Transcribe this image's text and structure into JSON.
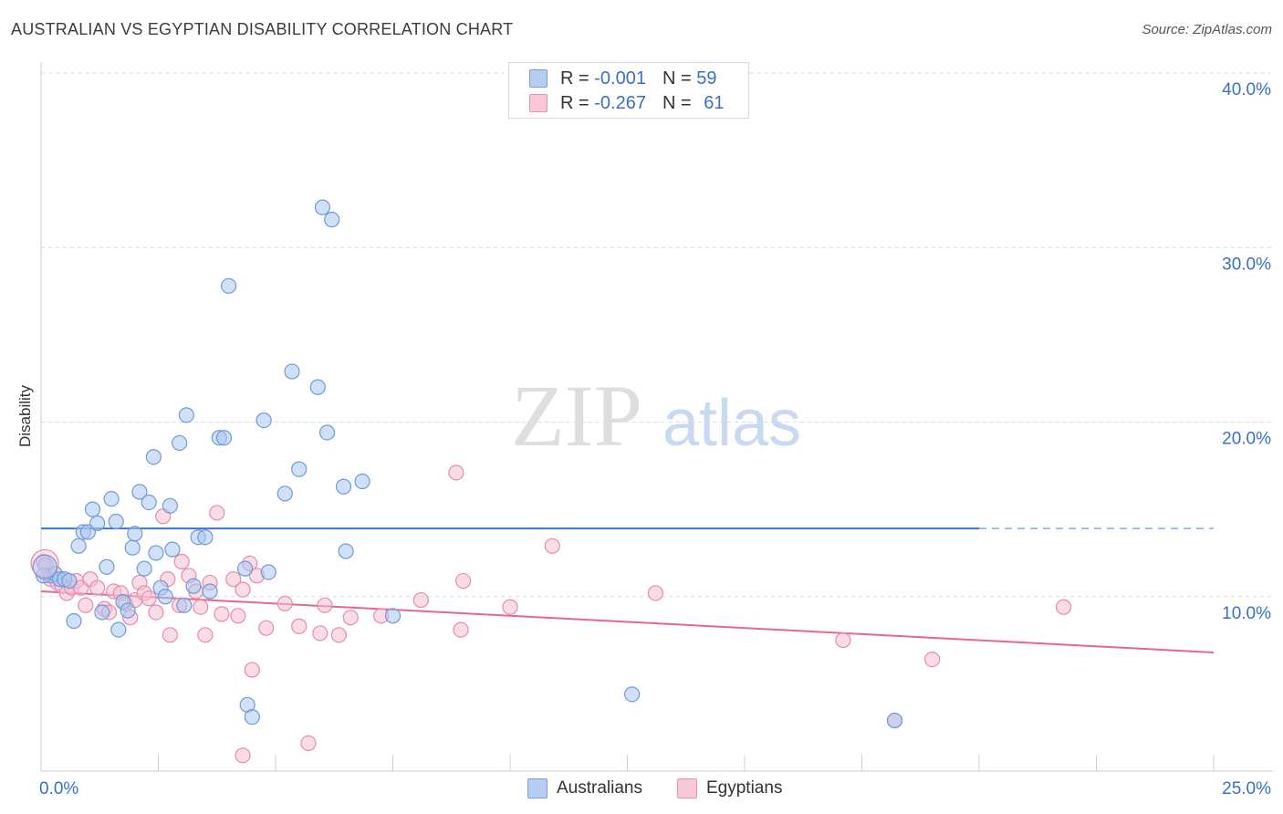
{
  "title": "AUSTRALIAN VS EGYPTIAN DISABILITY CORRELATION CHART",
  "source": "Source: ZipAtlas.com",
  "watermark": {
    "zip": "ZIP",
    "atlas": "atlas"
  },
  "legend": {
    "rows": [
      {
        "r_label": "R = ",
        "r_value": "-0.001",
        "n_label": "N = ",
        "n_value": "59"
      },
      {
        "r_label": "R = ",
        "r_value": "-0.267",
        "n_label": "N = ",
        "n_value": "61"
      }
    ]
  },
  "colors": {
    "blue_fill": "#a9c6ef",
    "blue_stroke": "#6f9ad8",
    "blue_line": "#3a76cf",
    "pink_fill": "#f6bfd2",
    "pink_stroke": "#e98aab",
    "pink_line": "#e56690",
    "axis_text": "#3a6fc8",
    "grid": "#dcdcdc"
  },
  "chart_data": {
    "type": "scatter",
    "title": "AUSTRALIAN VS EGYPTIAN DISABILITY CORRELATION CHART",
    "xlabel": "",
    "ylabel": "Disability",
    "xlim": [
      0,
      25
    ],
    "ylim": [
      0,
      40
    ],
    "x_tick_labels": [
      {
        "value": 0,
        "label": "0.0%"
      },
      {
        "value": 25,
        "label": "25.0%"
      }
    ],
    "y_tick_labels": [
      {
        "value": 10,
        "label": "10.0%"
      },
      {
        "value": 20,
        "label": "20.0%"
      },
      {
        "value": 30,
        "label": "30.0%"
      },
      {
        "value": 40,
        "label": "40.0%"
      }
    ],
    "series": [
      {
        "name": "Australians",
        "r": -0.001,
        "n": 59,
        "trend": {
          "x0": 0,
          "y0": 13.9,
          "x1": 20,
          "y1": 13.9,
          "dashed_to": 25
        },
        "points": [
          [
            0.1,
            11.8
          ],
          [
            0.2,
            11.2
          ],
          [
            0.3,
            11.3
          ],
          [
            0.4,
            11.0
          ],
          [
            0.5,
            11.0
          ],
          [
            0.6,
            10.9
          ],
          [
            0.7,
            8.6
          ],
          [
            0.8,
            12.9
          ],
          [
            0.9,
            13.7
          ],
          [
            1.0,
            13.7
          ],
          [
            1.1,
            15.0
          ],
          [
            1.2,
            14.2
          ],
          [
            1.3,
            9.1
          ],
          [
            1.4,
            11.7
          ],
          [
            1.5,
            15.6
          ],
          [
            1.6,
            14.3
          ],
          [
            1.65,
            8.1
          ],
          [
            1.75,
            9.7
          ],
          [
            1.85,
            9.2
          ],
          [
            1.95,
            12.8
          ],
          [
            2.0,
            13.6
          ],
          [
            2.1,
            16.0
          ],
          [
            2.2,
            11.6
          ],
          [
            2.3,
            15.4
          ],
          [
            2.4,
            18.0
          ],
          [
            2.45,
            12.5
          ],
          [
            2.55,
            10.5
          ],
          [
            2.65,
            10.0
          ],
          [
            2.75,
            15.2
          ],
          [
            2.8,
            12.7
          ],
          [
            2.95,
            18.8
          ],
          [
            3.05,
            9.5
          ],
          [
            3.1,
            20.4
          ],
          [
            3.25,
            10.6
          ],
          [
            3.35,
            13.4
          ],
          [
            3.5,
            13.4
          ],
          [
            3.6,
            10.3
          ],
          [
            3.8,
            19.1
          ],
          [
            3.9,
            19.1
          ],
          [
            4.0,
            27.8
          ],
          [
            4.35,
            11.6
          ],
          [
            4.4,
            3.8
          ],
          [
            4.5,
            3.1
          ],
          [
            4.75,
            20.1
          ],
          [
            4.85,
            11.4
          ],
          [
            5.2,
            15.9
          ],
          [
            5.35,
            22.9
          ],
          [
            5.5,
            17.3
          ],
          [
            5.9,
            22.0
          ],
          [
            6.0,
            32.3
          ],
          [
            6.1,
            19.4
          ],
          [
            6.2,
            31.6
          ],
          [
            6.45,
            16.3
          ],
          [
            6.5,
            12.6
          ],
          [
            6.85,
            16.6
          ],
          [
            7.5,
            8.9
          ],
          [
            12.6,
            4.4
          ],
          [
            18.2,
            2.9
          ],
          [
            0.05,
            11.2
          ]
        ]
      },
      {
        "name": "Egyptians",
        "r": -0.267,
        "n": 61,
        "trend": {
          "x0": 0,
          "y0": 10.3,
          "x1": 25,
          "y1": 6.8
        },
        "points": [
          [
            0.05,
            12.0
          ],
          [
            0.2,
            11.0
          ],
          [
            0.35,
            10.8
          ],
          [
            0.45,
            10.6
          ],
          [
            0.55,
            10.2
          ],
          [
            0.65,
            10.5
          ],
          [
            0.75,
            10.9
          ],
          [
            0.85,
            10.5
          ],
          [
            0.95,
            9.5
          ],
          [
            1.05,
            11.0
          ],
          [
            1.2,
            10.5
          ],
          [
            1.35,
            9.3
          ],
          [
            1.45,
            9.1
          ],
          [
            1.55,
            10.3
          ],
          [
            1.7,
            10.2
          ],
          [
            1.8,
            9.6
          ],
          [
            1.9,
            8.8
          ],
          [
            2.0,
            9.8
          ],
          [
            2.1,
            10.8
          ],
          [
            2.2,
            10.2
          ],
          [
            2.3,
            9.9
          ],
          [
            2.45,
            9.1
          ],
          [
            2.6,
            14.6
          ],
          [
            2.7,
            11.0
          ],
          [
            2.75,
            7.8
          ],
          [
            2.95,
            9.5
          ],
          [
            3.0,
            12.0
          ],
          [
            3.15,
            11.2
          ],
          [
            3.3,
            10.3
          ],
          [
            3.4,
            9.4
          ],
          [
            3.5,
            7.8
          ],
          [
            3.6,
            10.8
          ],
          [
            3.75,
            14.8
          ],
          [
            3.85,
            9.0
          ],
          [
            4.1,
            11.0
          ],
          [
            4.2,
            8.9
          ],
          [
            4.3,
            10.4
          ],
          [
            4.45,
            11.9
          ],
          [
            4.5,
            5.8
          ],
          [
            4.6,
            11.2
          ],
          [
            4.8,
            8.2
          ],
          [
            4.3,
            0.9
          ],
          [
            5.2,
            9.6
          ],
          [
            5.5,
            8.3
          ],
          [
            5.7,
            1.6
          ],
          [
            5.95,
            7.9
          ],
          [
            6.05,
            9.5
          ],
          [
            6.35,
            7.8
          ],
          [
            6.6,
            8.8
          ],
          [
            7.25,
            8.9
          ],
          [
            8.1,
            9.8
          ],
          [
            8.85,
            17.1
          ],
          [
            8.95,
            8.1
          ],
          [
            9.0,
            10.9
          ],
          [
            10.0,
            9.4
          ],
          [
            10.9,
            12.9
          ],
          [
            13.1,
            10.2
          ],
          [
            17.1,
            7.5
          ],
          [
            19.0,
            6.4
          ],
          [
            21.8,
            9.4
          ],
          [
            18.2,
            2.9
          ]
        ]
      }
    ]
  },
  "bottom_legend": {
    "blue_label": "Australians",
    "pink_label": "Egyptians"
  }
}
